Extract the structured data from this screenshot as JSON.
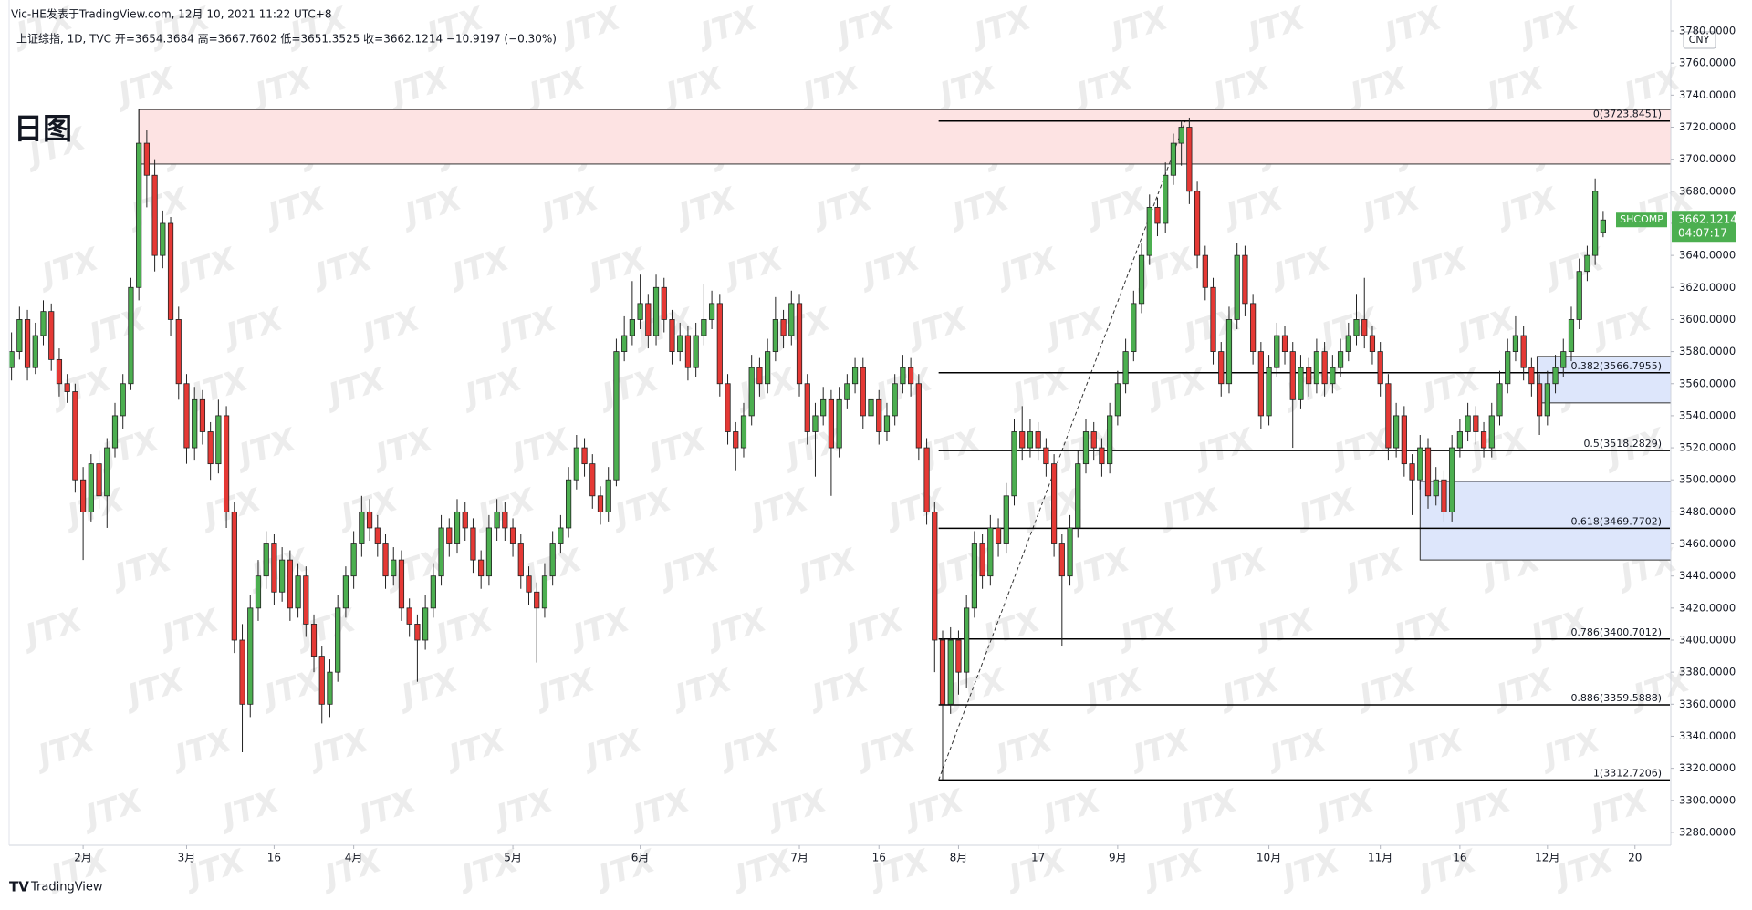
{
  "chart_data": {
    "type": "candlestick",
    "header": "Vic-HE发表于TradingView.com, 12月 10, 2021 11:22 UTC+8",
    "subtitle": "上证综指, 1D, TVC  开=3654.3684  高=3667.7602  低=3651.3525  收=3662.1214  −10.9197 (−0.30%)",
    "annotation": "日图",
    "currency": "CNY",
    "watermark": "JTX",
    "brand": "TradingView",
    "up_color": "#4caf50",
    "down_color": "#e53935",
    "xlim": [
      -0.3,
      208.5
    ],
    "ylim": [
      3272,
      3784
    ],
    "xticks": [
      {
        "value": 9,
        "label": "2月"
      },
      {
        "value": 22,
        "label": "3月"
      },
      {
        "value": 33,
        "label": "16"
      },
      {
        "value": 43,
        "label": "4月"
      },
      {
        "value": 63,
        "label": "5月"
      },
      {
        "value": 79,
        "label": "6月"
      },
      {
        "value": 99,
        "label": "7月"
      },
      {
        "value": 109,
        "label": "16"
      },
      {
        "value": 119,
        "label": "8月"
      },
      {
        "value": 129,
        "label": "17"
      },
      {
        "value": 139,
        "label": "9月"
      },
      {
        "value": 158,
        "label": "10月"
      },
      {
        "value": 172,
        "label": "11月"
      },
      {
        "value": 182,
        "label": "16"
      },
      {
        "value": 193,
        "label": "12月"
      },
      {
        "value": 204,
        "label": "20"
      }
    ],
    "yticks": [
      {
        "value": 3280,
        "label": "3280.0000"
      },
      {
        "value": 3300,
        "label": "3300.0000"
      },
      {
        "value": 3320,
        "label": "3320.0000"
      },
      {
        "value": 3340,
        "label": "3340.0000"
      },
      {
        "value": 3360,
        "label": "3360.0000"
      },
      {
        "value": 3380,
        "label": "3380.0000"
      },
      {
        "value": 3400,
        "label": "3400.0000"
      },
      {
        "value": 3420,
        "label": "3420.0000"
      },
      {
        "value": 3440,
        "label": "3440.0000"
      },
      {
        "value": 3460,
        "label": "3460.0000"
      },
      {
        "value": 3480,
        "label": "3480.0000"
      },
      {
        "value": 3500,
        "label": "3500.0000"
      },
      {
        "value": 3520,
        "label": "3520.0000"
      },
      {
        "value": 3540,
        "label": "3540.0000"
      },
      {
        "value": 3560,
        "label": "3560.0000"
      },
      {
        "value": 3580,
        "label": "3580.0000"
      },
      {
        "value": 3600,
        "label": "3600.0000"
      },
      {
        "value": 3620,
        "label": "3620.0000"
      },
      {
        "value": 3640,
        "label": "3640.0000"
      },
      {
        "value": 3660,
        "label": "3660.0000"
      },
      {
        "value": 3680,
        "label": "3680.0000"
      },
      {
        "value": 3700,
        "label": "3700.0000"
      },
      {
        "value": 3720,
        "label": "3720.0000"
      },
      {
        "value": 3740,
        "label": "3740.0000"
      },
      {
        "value": 3760,
        "label": "3760.0000"
      },
      {
        "value": 3780,
        "label": "3780.0000"
      }
    ],
    "zones": [
      {
        "from": 16,
        "low": 3697,
        "high": 3731,
        "color": "#fde3e3"
      },
      {
        "from": 191.7,
        "low": 3548,
        "high": 3577,
        "color": "#dde6fb"
      },
      {
        "from": 177,
        "low": 3450,
        "high": 3499,
        "color": "#dde6fb"
      }
    ],
    "fib_start": 116.5,
    "fib_end": 147.5,
    "fib_levels": [
      {
        "value": 3723.8451,
        "label": "0(3723.8451)"
      },
      {
        "value": 3566.7955,
        "label": "0.382(3566.7955)"
      },
      {
        "value": 3518.2829,
        "label": "0.5(3518.2829)"
      },
      {
        "value": 3469.7702,
        "label": "0.618(3469.7702)"
      },
      {
        "value": 3400.7012,
        "label": "0.786(3400.7012)"
      },
      {
        "value": 3359.5888,
        "label": "0.886(3359.5888)"
      },
      {
        "value": 3312.7206,
        "label": "1(3312.7206)"
      }
    ],
    "last_price": {
      "symbol": "SHCOMP",
      "value": 3662.1214,
      "countdown": "04:07:17",
      "color": "#4caf50"
    },
    "candles": [
      [
        3570,
        3592,
        3562,
        3580
      ],
      [
        3580,
        3608,
        3575,
        3600
      ],
      [
        3600,
        3606,
        3562,
        3570
      ],
      [
        3570,
        3598,
        3566,
        3590
      ],
      [
        3590,
        3612,
        3584,
        3605
      ],
      [
        3605,
        3610,
        3568,
        3575
      ],
      [
        3575,
        3582,
        3552,
        3560
      ],
      [
        3560,
        3566,
        3548,
        3555
      ],
      [
        3555,
        3560,
        3492,
        3500
      ],
      [
        3500,
        3508,
        3450,
        3480
      ],
      [
        3480,
        3516,
        3474,
        3510
      ],
      [
        3510,
        3518,
        3482,
        3490
      ],
      [
        3490,
        3526,
        3470,
        3520
      ],
      [
        3520,
        3548,
        3514,
        3540
      ],
      [
        3540,
        3566,
        3532,
        3560
      ],
      [
        3560,
        3626,
        3556,
        3620
      ],
      [
        3620,
        3731,
        3612,
        3710
      ],
      [
        3710,
        3718,
        3670,
        3690
      ],
      [
        3690,
        3700,
        3630,
        3640
      ],
      [
        3640,
        3668,
        3632,
        3660
      ],
      [
        3660,
        3664,
        3590,
        3600
      ],
      [
        3600,
        3608,
        3550,
        3560
      ],
      [
        3560,
        3566,
        3510,
        3520
      ],
      [
        3520,
        3558,
        3512,
        3550
      ],
      [
        3550,
        3556,
        3522,
        3530
      ],
      [
        3530,
        3536,
        3500,
        3510
      ],
      [
        3510,
        3550,
        3504,
        3540
      ],
      [
        3540,
        3546,
        3470,
        3480
      ],
      [
        3480,
        3486,
        3392,
        3400
      ],
      [
        3400,
        3410,
        3330,
        3360
      ],
      [
        3360,
        3428,
        3352,
        3420
      ],
      [
        3420,
        3450,
        3412,
        3440
      ],
      [
        3440,
        3468,
        3432,
        3460
      ],
      [
        3460,
        3466,
        3422,
        3430
      ],
      [
        3430,
        3458,
        3424,
        3450
      ],
      [
        3450,
        3456,
        3412,
        3420
      ],
      [
        3420,
        3448,
        3414,
        3440
      ],
      [
        3440,
        3446,
        3402,
        3410
      ],
      [
        3410,
        3416,
        3380,
        3390
      ],
      [
        3390,
        3396,
        3348,
        3360
      ],
      [
        3360,
        3388,
        3352,
        3380
      ],
      [
        3380,
        3428,
        3374,
        3420
      ],
      [
        3420,
        3446,
        3414,
        3440
      ],
      [
        3440,
        3468,
        3432,
        3460
      ],
      [
        3460,
        3490,
        3452,
        3480
      ],
      [
        3480,
        3488,
        3462,
        3470
      ],
      [
        3470,
        3478,
        3452,
        3460
      ],
      [
        3460,
        3466,
        3432,
        3440
      ],
      [
        3440,
        3458,
        3434,
        3450
      ],
      [
        3450,
        3456,
        3412,
        3420
      ],
      [
        3420,
        3426,
        3402,
        3410
      ],
      [
        3410,
        3416,
        3374,
        3400
      ],
      [
        3400,
        3428,
        3394,
        3420
      ],
      [
        3420,
        3448,
        3414,
        3440
      ],
      [
        3440,
        3478,
        3434,
        3470
      ],
      [
        3470,
        3476,
        3452,
        3460
      ],
      [
        3460,
        3488,
        3454,
        3480
      ],
      [
        3480,
        3486,
        3462,
        3470
      ],
      [
        3470,
        3476,
        3442,
        3450
      ],
      [
        3450,
        3456,
        3432,
        3440
      ],
      [
        3440,
        3478,
        3434,
        3470
      ],
      [
        3470,
        3488,
        3462,
        3480
      ],
      [
        3480,
        3486,
        3462,
        3470
      ],
      [
        3470,
        3476,
        3452,
        3460
      ],
      [
        3460,
        3466,
        3432,
        3440
      ],
      [
        3440,
        3446,
        3422,
        3430
      ],
      [
        3430,
        3436,
        3386,
        3420
      ],
      [
        3420,
        3448,
        3414,
        3440
      ],
      [
        3440,
        3468,
        3434,
        3460
      ],
      [
        3460,
        3478,
        3454,
        3470
      ],
      [
        3470,
        3508,
        3464,
        3500
      ],
      [
        3500,
        3528,
        3494,
        3520
      ],
      [
        3520,
        3526,
        3502,
        3510
      ],
      [
        3510,
        3516,
        3482,
        3490
      ],
      [
        3490,
        3496,
        3472,
        3480
      ],
      [
        3480,
        3508,
        3474,
        3500
      ],
      [
        3500,
        3588,
        3496,
        3580
      ],
      [
        3580,
        3602,
        3574,
        3590
      ],
      [
        3590,
        3624,
        3584,
        3600
      ],
      [
        3600,
        3628,
        3594,
        3610
      ],
      [
        3610,
        3616,
        3582,
        3590
      ],
      [
        3590,
        3628,
        3584,
        3620
      ],
      [
        3620,
        3626,
        3592,
        3600
      ],
      [
        3600,
        3606,
        3572,
        3580
      ],
      [
        3580,
        3598,
        3574,
        3590
      ],
      [
        3590,
        3596,
        3562,
        3570
      ],
      [
        3570,
        3598,
        3564,
        3590
      ],
      [
        3590,
        3622,
        3584,
        3600
      ],
      [
        3600,
        3618,
        3594,
        3610
      ],
      [
        3610,
        3616,
        3552,
        3560
      ],
      [
        3560,
        3566,
        3522,
        3530
      ],
      [
        3530,
        3536,
        3506,
        3520
      ],
      [
        3520,
        3548,
        3514,
        3540
      ],
      [
        3540,
        3578,
        3534,
        3570
      ],
      [
        3570,
        3576,
        3552,
        3560
      ],
      [
        3560,
        3588,
        3554,
        3580
      ],
      [
        3580,
        3614,
        3574,
        3600
      ],
      [
        3600,
        3606,
        3582,
        3590
      ],
      [
        3590,
        3618,
        3584,
        3610
      ],
      [
        3610,
        3616,
        3552,
        3560
      ],
      [
        3560,
        3566,
        3522,
        3530
      ],
      [
        3530,
        3548,
        3502,
        3540
      ],
      [
        3540,
        3558,
        3534,
        3550
      ],
      [
        3550,
        3556,
        3490,
        3520
      ],
      [
        3520,
        3558,
        3514,
        3550
      ],
      [
        3550,
        3566,
        3544,
        3560
      ],
      [
        3560,
        3576,
        3554,
        3570
      ],
      [
        3570,
        3576,
        3532,
        3540
      ],
      [
        3540,
        3558,
        3534,
        3550
      ],
      [
        3550,
        3556,
        3522,
        3530
      ],
      [
        3530,
        3548,
        3524,
        3540
      ],
      [
        3540,
        3566,
        3534,
        3560
      ],
      [
        3560,
        3578,
        3554,
        3570
      ],
      [
        3570,
        3576,
        3552,
        3560
      ],
      [
        3560,
        3566,
        3512,
        3520
      ],
      [
        3520,
        3526,
        3472,
        3480
      ],
      [
        3480,
        3486,
        3380,
        3400
      ],
      [
        3400,
        3406,
        3313,
        3360
      ],
      [
        3360,
        3408,
        3354,
        3400
      ],
      [
        3400,
        3406,
        3366,
        3380
      ],
      [
        3380,
        3428,
        3370,
        3420
      ],
      [
        3420,
        3468,
        3414,
        3460
      ],
      [
        3460,
        3466,
        3432,
        3440
      ],
      [
        3440,
        3478,
        3434,
        3470
      ],
      [
        3470,
        3476,
        3452,
        3460
      ],
      [
        3460,
        3498,
        3454,
        3490
      ],
      [
        3490,
        3538,
        3484,
        3530
      ],
      [
        3530,
        3546,
        3512,
        3520
      ],
      [
        3520,
        3538,
        3514,
        3530
      ],
      [
        3530,
        3536,
        3512,
        3520
      ],
      [
        3520,
        3526,
        3502,
        3510
      ],
      [
        3510,
        3516,
        3452,
        3460
      ],
      [
        3460,
        3466,
        3396,
        3440
      ],
      [
        3440,
        3478,
        3434,
        3470
      ],
      [
        3470,
        3518,
        3464,
        3510
      ],
      [
        3510,
        3538,
        3504,
        3530
      ],
      [
        3530,
        3536,
        3512,
        3520
      ],
      [
        3520,
        3526,
        3502,
        3510
      ],
      [
        3510,
        3548,
        3504,
        3540
      ],
      [
        3540,
        3568,
        3534,
        3560
      ],
      [
        3560,
        3588,
        3554,
        3580
      ],
      [
        3580,
        3618,
        3574,
        3610
      ],
      [
        3610,
        3648,
        3604,
        3640
      ],
      [
        3640,
        3678,
        3634,
        3670
      ],
      [
        3670,
        3676,
        3652,
        3660
      ],
      [
        3660,
        3698,
        3654,
        3690
      ],
      [
        3690,
        3716,
        3684,
        3710
      ],
      [
        3710,
        3724,
        3696,
        3720
      ],
      [
        3720,
        3726,
        3672,
        3680
      ],
      [
        3680,
        3686,
        3632,
        3640
      ],
      [
        3640,
        3646,
        3612,
        3620
      ],
      [
        3620,
        3626,
        3572,
        3580
      ],
      [
        3580,
        3586,
        3552,
        3560
      ],
      [
        3560,
        3608,
        3554,
        3600
      ],
      [
        3600,
        3648,
        3594,
        3640
      ],
      [
        3640,
        3646,
        3602,
        3610
      ],
      [
        3610,
        3616,
        3572,
        3580
      ],
      [
        3580,
        3586,
        3532,
        3540
      ],
      [
        3540,
        3578,
        3534,
        3570
      ],
      [
        3570,
        3598,
        3564,
        3590
      ],
      [
        3590,
        3596,
        3572,
        3580
      ],
      [
        3580,
        3586,
        3520,
        3550
      ],
      [
        3550,
        3578,
        3544,
        3570
      ],
      [
        3570,
        3576,
        3552,
        3560
      ],
      [
        3560,
        3588,
        3554,
        3580
      ],
      [
        3580,
        3586,
        3552,
        3560
      ],
      [
        3560,
        3578,
        3554,
        3570
      ],
      [
        3570,
        3588,
        3564,
        3580
      ],
      [
        3580,
        3598,
        3574,
        3590
      ],
      [
        3590,
        3616,
        3584,
        3600
      ],
      [
        3600,
        3626,
        3582,
        3590
      ],
      [
        3590,
        3596,
        3572,
        3580
      ],
      [
        3580,
        3586,
        3552,
        3560
      ],
      [
        3560,
        3566,
        3512,
        3520
      ],
      [
        3520,
        3548,
        3514,
        3540
      ],
      [
        3540,
        3546,
        3502,
        3510
      ],
      [
        3510,
        3516,
        3478,
        3500
      ],
      [
        3500,
        3528,
        3494,
        3520
      ],
      [
        3520,
        3526,
        3482,
        3490
      ],
      [
        3490,
        3508,
        3484,
        3500
      ],
      [
        3500,
        3506,
        3474,
        3480
      ],
      [
        3480,
        3528,
        3474,
        3520
      ],
      [
        3520,
        3538,
        3514,
        3530
      ],
      [
        3530,
        3548,
        3524,
        3540
      ],
      [
        3540,
        3546,
        3522,
        3530
      ],
      [
        3530,
        3536,
        3514,
        3520
      ],
      [
        3520,
        3548,
        3514,
        3540
      ],
      [
        3540,
        3568,
        3534,
        3560
      ],
      [
        3560,
        3588,
        3554,
        3580
      ],
      [
        3580,
        3602,
        3574,
        3590
      ],
      [
        3590,
        3596,
        3562,
        3570
      ],
      [
        3570,
        3576,
        3552,
        3560
      ],
      [
        3560,
        3566,
        3528,
        3540
      ],
      [
        3540,
        3568,
        3534,
        3560
      ],
      [
        3560,
        3578,
        3554,
        3570
      ],
      [
        3570,
        3588,
        3564,
        3580
      ],
      [
        3580,
        3608,
        3574,
        3600
      ],
      [
        3600,
        3638,
        3594,
        3630
      ],
      [
        3630,
        3646,
        3624,
        3640
      ],
      [
        3640,
        3688,
        3634,
        3680
      ],
      [
        3654.3684,
        3667.7602,
        3651.3525,
        3662.1214
      ]
    ]
  }
}
